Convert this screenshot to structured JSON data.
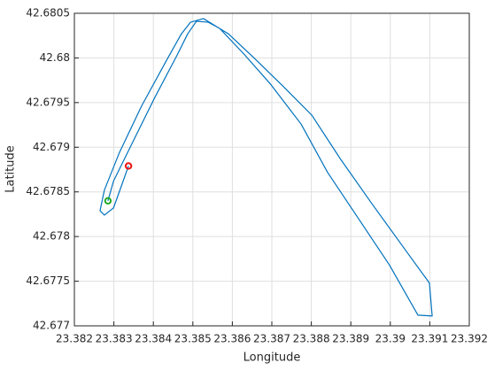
{
  "chart_data": {
    "type": "line",
    "xlabel": "Longitude",
    "ylabel": "Latitude",
    "xlim": [
      23.382,
      23.392
    ],
    "xticks": [
      23.382,
      23.383,
      23.384,
      23.385,
      23.386,
      23.387,
      23.388,
      23.389,
      23.39,
      23.391,
      23.392
    ],
    "ylim": [
      42.677,
      42.6805
    ],
    "yticks": [
      42.677,
      42.6775,
      42.678,
      42.6785,
      42.679,
      42.6795,
      42.68,
      42.6805
    ],
    "grid": true,
    "series": [
      {
        "color": "#0072bd",
        "style": "line",
        "x": [
          23.38285,
          23.38299,
          23.38348,
          23.38404,
          23.3846,
          23.38487,
          23.38509,
          23.38539,
          23.38568,
          23.38628,
          23.38696,
          23.38774,
          23.38841,
          23.38909,
          23.38998,
          23.3907,
          23.39106,
          23.39099,
          23.39043,
          23.38953,
          23.38875,
          23.38801,
          23.38729,
          23.38662,
          23.3859,
          23.38527,
          23.38494,
          23.38471,
          23.38433,
          23.3837,
          23.38314,
          23.38276,
          23.38265,
          23.38276,
          23.38299,
          23.38321,
          23.38337
        ],
        "values": [
          42.6784,
          42.67862,
          42.67906,
          42.67956,
          42.68003,
          42.68027,
          42.68041,
          42.6804,
          42.68033,
          42.68005,
          42.67971,
          42.67926,
          42.67872,
          42.67827,
          42.67768,
          42.67712,
          42.67711,
          42.67748,
          42.67782,
          42.67837,
          42.67886,
          42.67936,
          42.67968,
          42.67997,
          42.68027,
          42.68044,
          42.6804,
          42.68027,
          42.67997,
          42.67946,
          42.67894,
          42.67852,
          42.67829,
          42.67824,
          42.67832,
          42.67859,
          42.67879
        ]
      },
      {
        "color": "#22aa22",
        "style": "marker",
        "x": [
          23.38285
        ],
        "values": [
          42.6784
        ]
      },
      {
        "color": "#ee1111",
        "style": "marker",
        "x": [
          23.38337
        ],
        "values": [
          42.67879
        ]
      }
    ]
  }
}
